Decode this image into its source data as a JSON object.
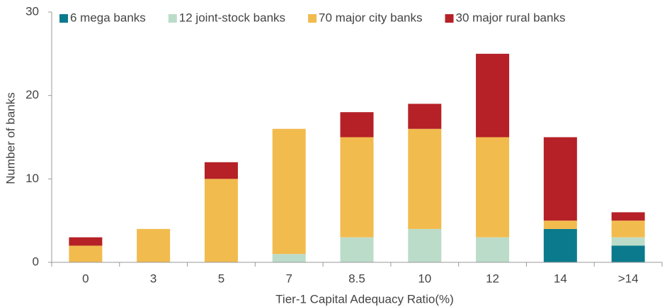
{
  "chart_data": {
    "type": "stacked_bar",
    "categories": [
      "0",
      "3",
      "5",
      "7",
      "8.5",
      "10",
      "12",
      "14",
      ">14"
    ],
    "series": [
      {
        "name": "6 mega banks",
        "color": "#0b7a8c",
        "values": [
          0,
          0,
          0,
          0,
          0,
          0,
          0,
          4,
          2
        ]
      },
      {
        "name": "12 joint-stock banks",
        "color": "#bcdcca",
        "values": [
          0,
          0,
          0,
          1,
          3,
          4,
          3,
          0,
          1
        ]
      },
      {
        "name": "70 major city banks",
        "color": "#f2bb4e",
        "values": [
          2,
          4,
          10,
          15,
          12,
          12,
          12,
          1,
          2
        ]
      },
      {
        "name": "30 major rural banks",
        "color": "#b52127",
        "values": [
          1,
          0,
          2,
          0,
          3,
          3,
          10,
          10,
          1
        ]
      }
    ],
    "xlabel": "Tier-1 Capital Adequacy Ratio(%)",
    "ylabel": "Number of banks",
    "ylim": [
      0,
      30
    ],
    "yticks": [
      0,
      10,
      20,
      30
    ],
    "grid": false,
    "legend": "top"
  }
}
